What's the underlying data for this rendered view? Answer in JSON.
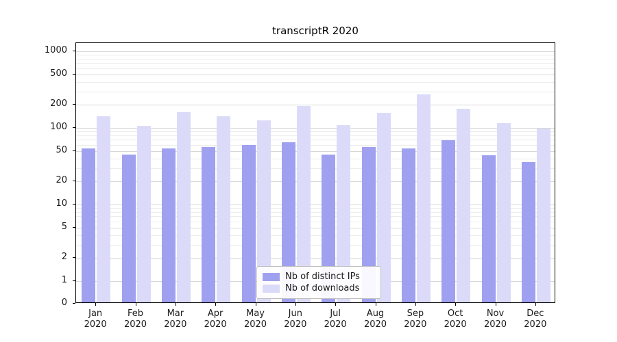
{
  "chart_data": {
    "type": "bar",
    "title": "transcriptR 2020",
    "categories": [
      "Jan",
      "Feb",
      "Mar",
      "Apr",
      "May",
      "Jun",
      "Jul",
      "Aug",
      "Sep",
      "Oct",
      "Nov",
      "Dec"
    ],
    "category_year": "2020",
    "series": [
      {
        "name": "Nb of distinct IPs",
        "color": "#a0a0f0",
        "values": [
          52,
          43,
          52,
          54,
          58,
          62,
          43,
          54,
          52,
          66,
          42,
          34
        ]
      },
      {
        "name": "Nb of downloads",
        "color": "#dbdbf9",
        "values": [
          135,
          102,
          155,
          135,
          120,
          185,
          105,
          150,
          265,
          172,
          112,
          95
        ]
      }
    ],
    "yscale": "symlog",
    "yticks": [
      0,
      1,
      2,
      5,
      10,
      20,
      50,
      100,
      200,
      500,
      1000
    ],
    "yticks_minor": [
      3,
      4,
      6,
      7,
      8,
      9,
      30,
      40,
      60,
      70,
      80,
      90,
      300,
      400,
      600,
      700,
      800,
      900
    ],
    "ylim": [
      0,
      1500
    ],
    "xlabel": "",
    "ylabel": "",
    "grid": true,
    "legend_position": "lower center inside"
  }
}
